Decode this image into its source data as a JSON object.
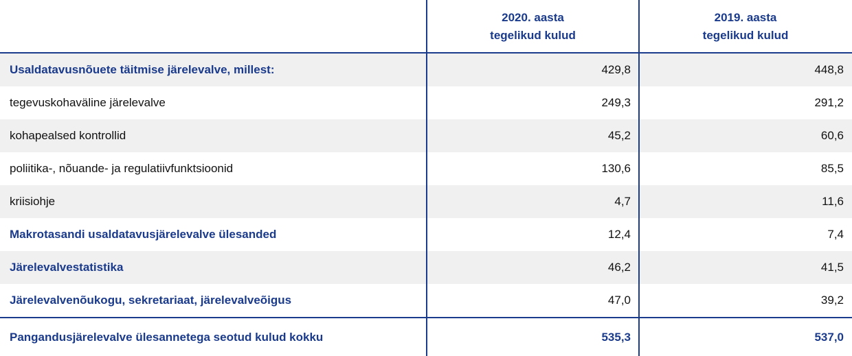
{
  "table": {
    "headers": [
      [
        "2020. aasta",
        "tegelikud kulud"
      ],
      [
        "2019. aasta",
        "tegelikud kulud"
      ]
    ],
    "rows": [
      {
        "label": "Usaldatavusnõuete täitmise järelevalve, millest:",
        "values": [
          "429,8",
          "448,8"
        ],
        "bold": true
      },
      {
        "label": "tegevuskohaväline järelevalve",
        "values": [
          "249,3",
          "291,2"
        ],
        "bold": false
      },
      {
        "label": "kohapealsed kontrollid",
        "values": [
          "45,2",
          "60,6"
        ],
        "bold": false
      },
      {
        "label": "poliitika-, nõuande- ja regulatiivfunktsioonid",
        "values": [
          "130,6",
          "85,5"
        ],
        "bold": false
      },
      {
        "label": "kriisiohje",
        "values": [
          "4,7",
          "11,6"
        ],
        "bold": false
      },
      {
        "label": "Makrotasandi usaldatavusjärelevalve ülesanded",
        "values": [
          "12,4",
          "7,4"
        ],
        "bold": true
      },
      {
        "label": "Järelevalvestatistika",
        "values": [
          "46,2",
          "41,5"
        ],
        "bold": true
      },
      {
        "label": "Järelevalvenõukogu, sekretariaat, järelevalveõigus",
        "values": [
          "47,0",
          "39,2"
        ],
        "bold": true
      }
    ],
    "total": {
      "label": "Pangandusjärelevalve ülesannetega seotud kulud kokku",
      "values": [
        "535,3",
        "537,0"
      ]
    }
  }
}
